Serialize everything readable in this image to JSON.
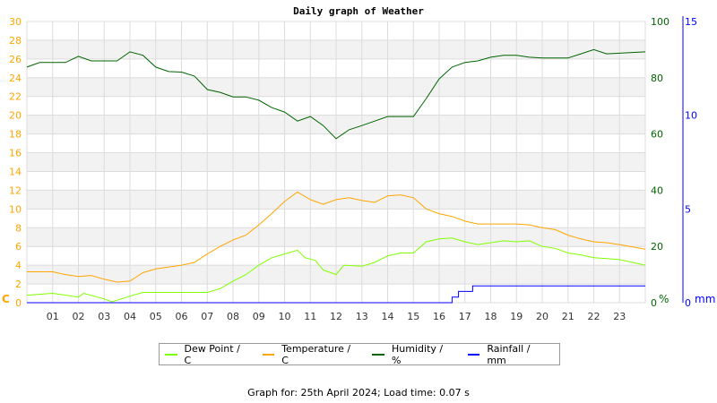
{
  "chart_data": {
    "type": "line",
    "title": "Daily graph of Weather",
    "x_tick_labels": [
      "01",
      "02",
      "03",
      "04",
      "05",
      "06",
      "07",
      "08",
      "09",
      "10",
      "11",
      "12",
      "13",
      "14",
      "15",
      "16",
      "17",
      "18",
      "19",
      "20",
      "21",
      "22",
      "23"
    ],
    "xlim": [
      0,
      24
    ],
    "axes": {
      "left": {
        "unit": "C",
        "ylim": [
          0,
          30
        ],
        "ticks": [
          0,
          2,
          4,
          6,
          8,
          10,
          12,
          14,
          16,
          18,
          20,
          22,
          24,
          26,
          28,
          30
        ],
        "color": "#ffa500"
      },
      "right": {
        "unit": "%",
        "ylim": [
          0,
          100
        ],
        "ticks": [
          0,
          20,
          40,
          60,
          80,
          100
        ],
        "color": "#006400"
      },
      "right2": {
        "unit": "mm",
        "ylim": [
          0,
          15
        ],
        "ticks": [
          0,
          5,
          10,
          15
        ],
        "color": "#0000ff"
      }
    },
    "grid": true,
    "legend_position": "bottom",
    "series": [
      {
        "name": "Dew Point / C",
        "axis": "left",
        "color": "#80ff00",
        "x": [
          0,
          1,
          2,
          2.2,
          3,
          3.3,
          4,
          4.5,
          5,
          6,
          7,
          7.5,
          8,
          8.5,
          9,
          9.5,
          10,
          10.5,
          10.8,
          11.2,
          11.5,
          12,
          12.3,
          13,
          13.5,
          14,
          14.5,
          15,
          15.5,
          16,
          16.5,
          17,
          17.5,
          18,
          18.5,
          19,
          19.5,
          20,
          20.5,
          21,
          21.5,
          22,
          22.5,
          23,
          24
        ],
        "y": [
          0.8,
          1.0,
          0.6,
          1.0,
          0.4,
          0.1,
          0.7,
          1.1,
          1.1,
          1.1,
          1.1,
          1.5,
          2.3,
          3.0,
          4.0,
          4.8,
          5.2,
          5.6,
          4.8,
          4.5,
          3.5,
          3.0,
          4.0,
          3.9,
          4.3,
          5.0,
          5.3,
          5.3,
          6.5,
          6.8,
          6.9,
          6.5,
          6.2,
          6.4,
          6.6,
          6.5,
          6.6,
          6.0,
          5.8,
          5.3,
          5.1,
          4.8,
          4.7,
          4.6,
          4.0
        ]
      },
      {
        "name": "Temperature / C",
        "axis": "left",
        "color": "#ffa500",
        "x": [
          0,
          1,
          1.5,
          2,
          2.5,
          3,
          3.5,
          4,
          4.5,
          5,
          6,
          6.5,
          7,
          7.5,
          8,
          8.5,
          9,
          9.5,
          10,
          10.5,
          11,
          11.5,
          12,
          12.5,
          13,
          13.5,
          14,
          14.5,
          15,
          15.5,
          16,
          16.5,
          17,
          17.5,
          18,
          19,
          19.5,
          20,
          20.5,
          21,
          21.5,
          22,
          22.5,
          23,
          24
        ],
        "y": [
          3.3,
          3.3,
          3.0,
          2.8,
          2.9,
          2.5,
          2.2,
          2.3,
          3.2,
          3.6,
          4.0,
          4.3,
          5.2,
          6.0,
          6.7,
          7.2,
          8.3,
          9.5,
          10.8,
          11.8,
          11.0,
          10.5,
          11.0,
          11.2,
          10.9,
          10.7,
          11.4,
          11.5,
          11.2,
          10.0,
          9.5,
          9.2,
          8.7,
          8.4,
          8.4,
          8.4,
          8.3,
          8.0,
          7.8,
          7.2,
          6.8,
          6.5,
          6.4,
          6.2,
          5.7
        ]
      },
      {
        "name": "Humidity / %",
        "axis": "right",
        "color": "#006400",
        "x": [
          0,
          0.5,
          1.5,
          2,
          2.5,
          3,
          3.5,
          4,
          4.5,
          5,
          5.5,
          6,
          6.5,
          7,
          7.5,
          8,
          8.5,
          9,
          9.5,
          10,
          10.5,
          11,
          11.5,
          12,
          12.5,
          13,
          13.5,
          14,
          15,
          15.5,
          16,
          16.5,
          17,
          17.5,
          18,
          18.5,
          19,
          19.5,
          20,
          21,
          21.5,
          22,
          22.5,
          24
        ],
        "y": [
          83.8,
          85.4,
          85.4,
          87.6,
          86,
          86,
          86,
          89.2,
          88,
          83.8,
          82.2,
          82,
          80.6,
          75.8,
          74.8,
          73.2,
          73.2,
          72,
          69.4,
          67.8,
          64.6,
          66.2,
          63,
          58.3,
          61.5,
          63,
          64.6,
          66.2,
          66.2,
          72.6,
          79.6,
          83.8,
          85.4,
          86,
          87.3,
          88,
          88,
          87.3,
          87,
          87,
          88.5,
          90,
          88.5,
          89.2
        ]
      },
      {
        "name": "Rainfall / mm",
        "axis": "right2",
        "color": "#0000ff",
        "x": [
          0,
          16.5,
          16.5,
          16.75,
          16.75,
          17.3,
          17.3,
          24
        ],
        "y": [
          0,
          0,
          0.3,
          0.3,
          0.6,
          0.6,
          0.9,
          0.9
        ]
      }
    ]
  },
  "footer": "Graph for: 25th April 2024; Load time: 0.07 s"
}
